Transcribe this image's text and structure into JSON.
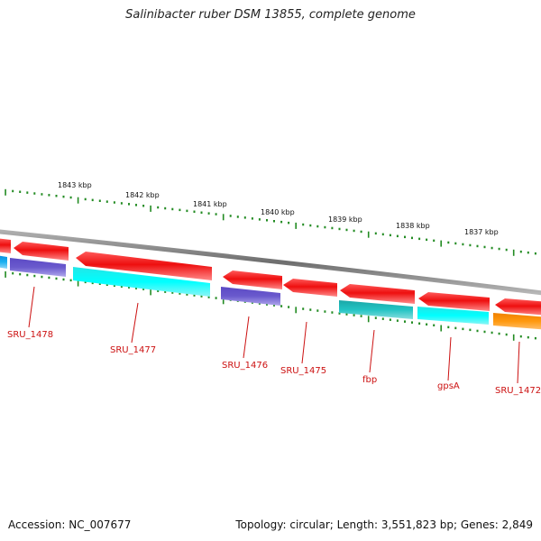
{
  "title": "Salinibacter ruber DSM 13855, complete genome",
  "footer": {
    "accession": "Accession: NC_007677",
    "summary": "Topology: circular; Length: 3,551,823 bp; Genes: 2,849"
  },
  "colors": {
    "forward_cds": "#ee1111",
    "reverse_cds_cyan": "#22eeee",
    "reverse_cds_teal": "#22bbbb",
    "reverse_cds_violet": "#6a5acd",
    "reverse_cds_blue": "#22aaee",
    "reverse_cds_orange": "#ff8c00",
    "backbone": "#808080",
    "ticks": "#228b22",
    "labels": "#cc1111"
  },
  "scale_labels": [
    {
      "kbp": 1843,
      "label": "1843 kbp"
    },
    {
      "kbp": 1842,
      "label": "1842 kbp"
    },
    {
      "kbp": 1841,
      "label": "1841 kbp"
    },
    {
      "kbp": 1840,
      "label": "1840 kbp"
    },
    {
      "kbp": 1839,
      "label": "1839 kbp"
    },
    {
      "kbp": 1838,
      "label": "1838 kbp"
    },
    {
      "kbp": 1837,
      "label": "1837 kbp"
    }
  ],
  "genes": [
    {
      "name": "SRU_1478",
      "label": "SRU_1478"
    },
    {
      "name": "SRU_1477",
      "label": "SRU_1477"
    },
    {
      "name": "SRU_1476",
      "label": "SRU_1476"
    },
    {
      "name": "SRU_1475",
      "label": "SRU_1475"
    },
    {
      "name": "fbp",
      "label": "fbp"
    },
    {
      "name": "gpsA",
      "label": "gpsA"
    },
    {
      "name": "SRU_1472",
      "label": "SRU_1472"
    }
  ]
}
